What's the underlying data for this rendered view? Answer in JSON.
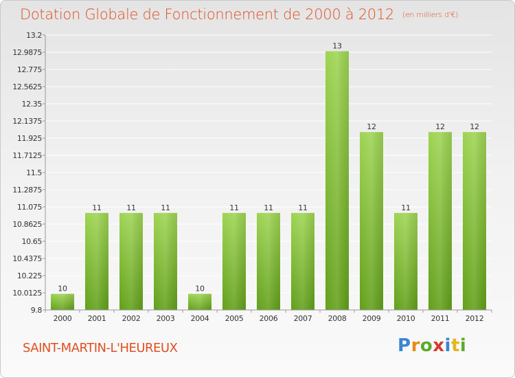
{
  "chart_data": {
    "type": "bar",
    "title": "Dotation Globale de Fonctionnement de 2000 à 2012",
    "subtitle": "(en milliers d'€)",
    "categories": [
      "2000",
      "2001",
      "2002",
      "2003",
      "2004",
      "2005",
      "2006",
      "2007",
      "2008",
      "2009",
      "2010",
      "2011",
      "2012"
    ],
    "values": [
      10,
      11,
      11,
      11,
      10,
      11,
      11,
      11,
      13,
      12,
      11,
      12,
      12
    ],
    "data_labels": [
      "10",
      "11",
      "11",
      "11",
      "10",
      "11",
      "11",
      "11",
      "13",
      "12",
      "11",
      "12",
      "12"
    ],
    "ylim": [
      9.8,
      13.2
    ],
    "yticks": [
      "9.8",
      "10.0125",
      "10.225",
      "10.4375",
      "10.65",
      "10.8625",
      "11.075",
      "11.2875",
      "11.5",
      "11.7125",
      "11.925",
      "12.1375",
      "12.35",
      "12.5625",
      "12.775",
      "12.9875",
      "13.2"
    ],
    "grid": true,
    "bar_color": "#8cc63e",
    "bar_color_dark": "#5e9a18",
    "xlabel": "",
    "ylabel": ""
  },
  "commune": "SAINT-MARTIN-L'HEUREUX",
  "brand": {
    "letters": [
      "P",
      "r",
      "o",
      "x",
      "i",
      "t",
      "i"
    ],
    "colors": [
      "#3a86d0",
      "#e88a1a",
      "#5aab2c",
      "#d43a2f",
      "#3a86d0",
      "#e8b41a",
      "#5aab2c"
    ]
  },
  "colors": {
    "title": "#e04e1f",
    "grid": "#ffffff",
    "axis": "#999999"
  }
}
